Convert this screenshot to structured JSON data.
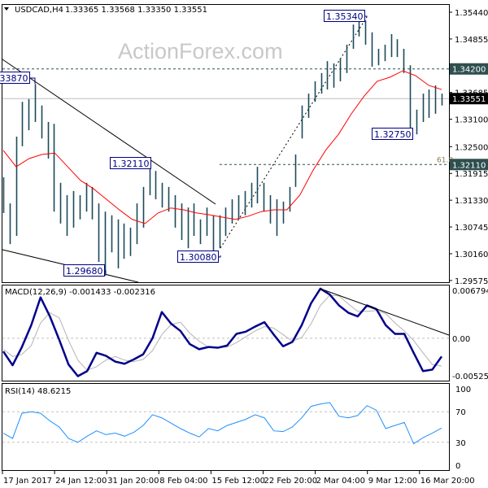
{
  "header": {
    "symbol": "USDCAD,H4",
    "ohlc": "1.33365 1.33568 1.33350 1.33551"
  },
  "watermark": "ActionForex.com",
  "colors": {
    "bars": "#1b4a5a",
    "ma": "#ff0000",
    "macd": "#00008b",
    "signal": "#b4b4b4",
    "rsi": "#1e90ff",
    "level_tag": "#2f4f4f",
    "price_tag": "#000000",
    "label_box": "#000080"
  },
  "chart_data": [
    {
      "type": "bar",
      "title": "USDCAD,H4",
      "ylim": [
        1.29575,
        1.3544
      ],
      "yticks": [
        "1.35440",
        "1.34855",
        "1.33685",
        "1.33100",
        "1.32500",
        "1.31915",
        "1.31330",
        "1.30745",
        "1.30160",
        "1.29575"
      ],
      "xticks": [
        "17 Jan 2017",
        "24 Jan 12:00",
        "31 Jan 20:00",
        "8 Feb 04:00",
        "15 Feb 12:00",
        "22 Feb 20:00",
        "2 Mar 04:00",
        "9 Mar 12:00",
        "16 Mar 20:00"
      ],
      "bars_high_low": [
        [
          1.3183,
          1.3105
        ],
        [
          1.3126,
          1.3037
        ],
        [
          1.3272,
          1.3055
        ],
        [
          1.3348,
          1.3251
        ],
        [
          1.3354,
          1.3286
        ],
        [
          1.3387,
          1.3304
        ],
        [
          1.334,
          1.3268
        ],
        [
          1.3304,
          1.3224
        ],
        [
          1.33,
          1.3108
        ],
        [
          1.3171,
          1.3082
        ],
        [
          1.3144,
          1.3055
        ],
        [
          1.3153,
          1.3073
        ],
        [
          1.3144,
          1.3091
        ],
        [
          1.3171,
          1.3108
        ],
        [
          1.3162,
          1.3091
        ],
        [
          1.3126,
          1.2998
        ],
        [
          1.3108,
          1.2968
        ],
        [
          1.31,
          1.3019
        ],
        [
          1.3091,
          1.2984
        ],
        [
          1.3082,
          1.3005
        ],
        [
          1.3073,
          1.3011
        ],
        [
          1.3126,
          1.3037
        ],
        [
          1.3162,
          1.3073
        ],
        [
          1.3211,
          1.3144
        ],
        [
          1.3197,
          1.3135
        ],
        [
          1.3171,
          1.3117
        ],
        [
          1.3162,
          1.3108
        ],
        [
          1.3144,
          1.3073
        ],
        [
          1.3126,
          1.3046
        ],
        [
          1.3117,
          1.3028
        ],
        [
          1.3126,
          1.3055
        ],
        [
          1.3091,
          1.3037
        ],
        [
          1.3117,
          1.3055
        ],
        [
          1.31,
          1.3008
        ],
        [
          1.31,
          1.3028
        ],
        [
          1.3117,
          1.3055
        ],
        [
          1.3135,
          1.3082
        ],
        [
          1.3144,
          1.3091
        ],
        [
          1.3153,
          1.31
        ],
        [
          1.3171,
          1.3117
        ],
        [
          1.3206,
          1.3126
        ],
        [
          1.3171,
          1.3108
        ],
        [
          1.3144,
          1.3082
        ],
        [
          1.3135,
          1.3055
        ],
        [
          1.313,
          1.3082
        ],
        [
          1.3162,
          1.3108
        ],
        [
          1.3233,
          1.3162
        ],
        [
          1.334,
          1.3268
        ],
        [
          1.3366,
          1.3313
        ],
        [
          1.3393,
          1.3348
        ],
        [
          1.3411,
          1.3366
        ],
        [
          1.3437,
          1.3375
        ],
        [
          1.3432,
          1.3379
        ],
        [
          1.3443,
          1.3393
        ],
        [
          1.3473,
          1.3411
        ],
        [
          1.3517,
          1.3464
        ],
        [
          1.3534,
          1.3491
        ],
        [
          1.3526,
          1.3473
        ],
        [
          1.35,
          1.3425
        ],
        [
          1.3464,
          1.3428
        ],
        [
          1.3473,
          1.3437
        ],
        [
          1.3496,
          1.3446
        ],
        [
          1.3485,
          1.3446
        ],
        [
          1.3464,
          1.3411
        ],
        [
          1.3428,
          1.3275
        ],
        [
          1.3331,
          1.3277
        ],
        [
          1.3366,
          1.3304
        ],
        [
          1.3375,
          1.3313
        ],
        [
          1.3384,
          1.3322
        ],
        [
          1.3366,
          1.334
        ]
      ],
      "moving_average": [
        1.3242,
        1.3206,
        1.3224,
        1.3233,
        1.3236,
        1.3206,
        1.3176,
        1.3158,
        1.3135,
        1.3112,
        1.3091,
        1.3082,
        1.3105,
        1.3116,
        1.3112,
        1.3105,
        1.3101,
        1.3096,
        1.3091,
        1.3098,
        1.3108,
        1.3112,
        1.3112,
        1.3144,
        1.3197,
        1.3242,
        1.3277,
        1.3322,
        1.3361,
        1.3393,
        1.3402,
        1.3416,
        1.3405,
        1.3384,
        1.3375
      ],
      "levels": [
        {
          "value": 1.342,
          "tag": "1.34200",
          "style": "dashed"
        },
        {
          "value": 1.3211,
          "tag": "1.32110",
          "style": "dashed",
          "note": "61.8"
        },
        {
          "value": 1.33551,
          "tag": "1.33551",
          "style": "current-price"
        }
      ],
      "annotations": [
        "1.33870",
        "1.29680",
        "1.32110",
        "1.30080",
        "1.35340",
        "1.32750"
      ]
    },
    {
      "type": "line",
      "title": "MACD(12,26,9) -0.001433 -0.002316",
      "ylim": [
        -0.005254,
        0.006794
      ],
      "yticks": [
        "0.006794",
        "0.00",
        "-0.005254"
      ],
      "series": [
        {
          "name": "MACD",
          "values": [
            -0.0018,
            -0.0037,
            -0.0012,
            0.0018,
            0.0056,
            0.003,
            -0.0002,
            -0.0036,
            -0.0052,
            -0.0045,
            -0.002,
            -0.0024,
            -0.0032,
            -0.0035,
            -0.0029,
            -0.0022,
            0.0,
            0.0036,
            0.002,
            0.001,
            -0.0008,
            -0.0015,
            -0.0012,
            -0.0013,
            -0.001,
            0.0006,
            0.0009,
            0.0016,
            0.0022,
            0.0005,
            -0.0011,
            -0.0005,
            0.0018,
            0.0048,
            0.0068,
            0.006,
            0.0045,
            0.0035,
            0.003,
            0.0045,
            0.004,
            0.0018,
            0.0006,
            0.0006,
            -0.002,
            -0.0045,
            -0.0043,
            -0.0025
          ]
        },
        {
          "name": "Signal",
          "values": [
            -0.0015,
            -0.0025,
            -0.0022,
            -0.001,
            0.0021,
            0.0035,
            0.0028,
            -0.0003,
            -0.003,
            -0.0044,
            -0.0039,
            -0.003,
            -0.0025,
            -0.003,
            -0.0032,
            -0.0029,
            -0.0017,
            0.0005,
            0.0019,
            0.0022,
            0.0007,
            -0.0004,
            -0.0012,
            -0.0013,
            -0.0012,
            -0.0006,
            0.0002,
            0.001,
            0.0016,
            0.0014,
            0.0005,
            -0.0004,
            0.0001,
            0.002,
            0.0045,
            0.0059,
            0.0058,
            0.0047,
            0.0037,
            0.0037,
            0.0038,
            0.0034,
            0.0021,
            0.001,
            -0.0003,
            -0.002,
            -0.0036,
            -0.0038
          ]
        }
      ]
    },
    {
      "type": "line",
      "title": "RSI(14) 48.6215",
      "ylim": [
        0,
        100
      ],
      "yticks": [
        "100",
        "70",
        "30",
        "0"
      ],
      "series": [
        {
          "name": "RSI(14)",
          "values": [
            42,
            35,
            68,
            70,
            68,
            58,
            50,
            35,
            30,
            38,
            45,
            40,
            42,
            38,
            43,
            52,
            66,
            62,
            55,
            48,
            42,
            37,
            48,
            45,
            52,
            56,
            60,
            66,
            62,
            45,
            44,
            50,
            62,
            77,
            80,
            82,
            64,
            62,
            65,
            78,
            72,
            48,
            52,
            56,
            28,
            36,
            42,
            48.6
          ]
        }
      ]
    }
  ]
}
